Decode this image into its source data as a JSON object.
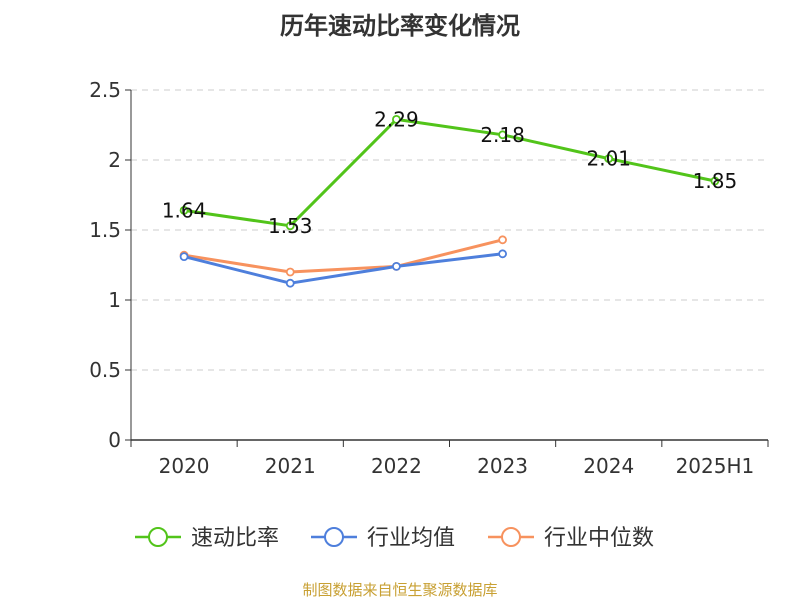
{
  "chart_data": {
    "type": "line",
    "title": "历年速动比率变化情况",
    "categories": [
      "2020",
      "2021",
      "2022",
      "2023",
      "2024",
      "2025H1"
    ],
    "ylim": [
      0,
      2.5
    ],
    "yticks": [
      "0",
      "0.5",
      "1",
      "1.5",
      "2",
      "2.5"
    ],
    "grid": true,
    "legend_position": "bottom",
    "series": [
      {
        "name": "速动比率",
        "color": "#52c41a",
        "values": [
          1.64,
          1.53,
          2.29,
          2.18,
          2.01,
          1.85
        ],
        "labels": [
          "1.64",
          "1.53",
          "2.29",
          "2.18",
          "2.01",
          "1.85"
        ]
      },
      {
        "name": "行业均值",
        "color": "#4e7fdc",
        "values": [
          1.31,
          1.12,
          1.24,
          1.33,
          null,
          null
        ]
      },
      {
        "name": "行业中位数",
        "color": "#f7925e",
        "values": [
          1.32,
          1.2,
          1.24,
          1.43,
          null,
          null
        ]
      }
    ]
  },
  "footer": {
    "source": "制图数据来自恒生聚源数据库"
  }
}
